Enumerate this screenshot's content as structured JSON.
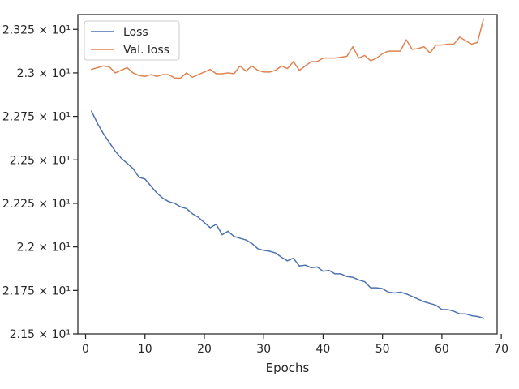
{
  "chart_data": {
    "type": "line",
    "title": "",
    "xlabel": "Epochs",
    "ylabel": "",
    "xlim": [
      -1.3,
      69.3
    ],
    "ylim": [
      21.5,
      23.335
    ],
    "x_ticks": [
      0,
      10,
      20,
      30,
      40,
      50,
      60,
      70
    ],
    "x_tick_labels": [
      "0",
      "10",
      "20",
      "30",
      "40",
      "50",
      "60",
      "70"
    ],
    "y_ticks": [
      21.5,
      21.75,
      22.0,
      22.25,
      22.5,
      22.75,
      23.0,
      23.25
    ],
    "y_tick_labels": [
      "2.15 × 10¹",
      "2.175 × 10¹",
      "2.2 × 10¹",
      "2.225 × 10¹",
      "2.25 × 10¹",
      "2.275 × 10¹",
      "2.3 × 10¹",
      "2.325 × 10¹"
    ],
    "grid": false,
    "legend_position": "top-left",
    "x": [
      1,
      2,
      3,
      4,
      5,
      6,
      7,
      8,
      9,
      10,
      11,
      12,
      13,
      14,
      15,
      16,
      17,
      18,
      19,
      20,
      21,
      22,
      23,
      24,
      25,
      26,
      27,
      28,
      29,
      30,
      31,
      32,
      33,
      34,
      35,
      36,
      37,
      38,
      39,
      40,
      41,
      42,
      43,
      44,
      45,
      46,
      47,
      48,
      49,
      50,
      51,
      52,
      53,
      54,
      55,
      56,
      57,
      58,
      59,
      60,
      61,
      62,
      63,
      64,
      65,
      66,
      67
    ],
    "series": [
      {
        "name": "Loss",
        "color": "#4c72b0",
        "values": [
          22.78,
          22.71,
          22.65,
          22.6,
          22.55,
          22.51,
          22.48,
          22.45,
          22.4,
          22.39,
          22.35,
          22.31,
          22.28,
          22.26,
          22.25,
          22.23,
          22.22,
          22.19,
          22.17,
          22.14,
          22.11,
          22.13,
          22.07,
          22.09,
          22.06,
          22.05,
          22.04,
          22.02,
          21.99,
          21.98,
          21.975,
          21.965,
          21.94,
          21.92,
          21.935,
          21.89,
          21.895,
          21.88,
          21.885,
          21.86,
          21.865,
          21.845,
          21.845,
          21.83,
          21.825,
          21.81,
          21.8,
          21.765,
          21.765,
          21.76,
          21.74,
          21.735,
          21.74,
          21.73,
          21.715,
          21.7,
          21.685,
          21.675,
          21.665,
          21.64,
          21.64,
          21.63,
          21.615,
          21.615,
          21.605,
          21.6,
          21.59
        ]
      },
      {
        "name": "Val. loss",
        "color": "#dd8452",
        "values": [
          23.02,
          23.03,
          23.04,
          23.035,
          23.0,
          23.015,
          23.03,
          23.0,
          22.985,
          22.98,
          22.99,
          22.98,
          22.99,
          22.99,
          22.97,
          22.97,
          23.0,
          22.975,
          22.99,
          23.005,
          23.02,
          22.995,
          22.995,
          23.0,
          22.995,
          23.04,
          23.01,
          23.04,
          23.015,
          23.005,
          23.005,
          23.015,
          23.04,
          23.025,
          23.065,
          23.015,
          23.04,
          23.065,
          23.065,
          23.085,
          23.085,
          23.085,
          23.09,
          23.095,
          23.15,
          23.085,
          23.1,
          23.07,
          23.085,
          23.11,
          23.125,
          23.125,
          23.125,
          23.19,
          23.135,
          23.14,
          23.15,
          23.115,
          23.16,
          23.16,
          23.165,
          23.165,
          23.205,
          23.185,
          23.165,
          23.175,
          23.31
        ]
      }
    ]
  }
}
